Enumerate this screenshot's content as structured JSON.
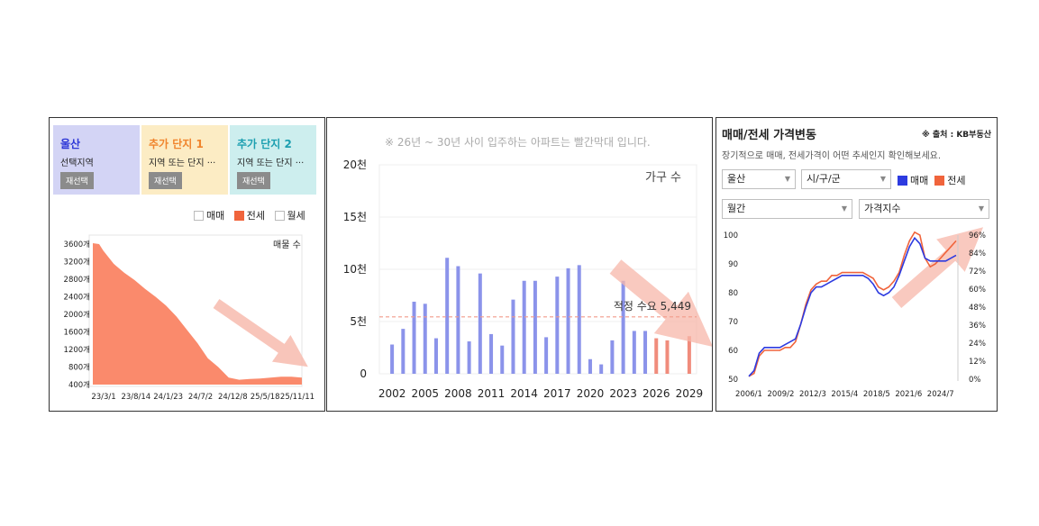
{
  "panel1": {
    "cells": [
      {
        "title": "울산",
        "subtitle": "선택지역",
        "button": "재선택",
        "bg": "#d3d4f5",
        "title_color": "#2b35d6"
      },
      {
        "title": "추가 단지 1",
        "subtitle": "지역 또는 단지 ···",
        "button": "재선택",
        "bg": "#fcecc4",
        "title_color": "#f0842c"
      },
      {
        "title": "추가 단지 2",
        "subtitle": "지역 또는 단지 ···",
        "button": "재선택",
        "bg": "#cdeeee",
        "title_color": "#1c9fb0"
      }
    ],
    "legend": [
      "매매",
      "전세",
      "월세"
    ],
    "legend_colors": [
      "#ffffff",
      "#f0643c",
      "#ffffff"
    ]
  },
  "panel2": {
    "note": "※ 26년 ~ 30년 사이 입주하는 아파트는 빨간막대 입니다.",
    "annotation": "적정 수요 5,449"
  },
  "panel3": {
    "title": "매매/전세 가격변동",
    "source": "※ 출처 : KB부동산",
    "description": "장기적으로 매매, 전세가격이 어떤 추세인지 확인해보세요.",
    "region_select": "울산",
    "district_select": "시/구/군",
    "period_select": "월간",
    "index_select": "가격지수",
    "legend": [
      "매매",
      "전세"
    ],
    "legend_colors": [
      "#2d3be0",
      "#f0643c"
    ]
  },
  "chart_data": [
    {
      "type": "area",
      "series": [
        {
          "name": "전세",
          "color": "#fa8a6c"
        }
      ],
      "annotation": "매물 수",
      "x_ticks": [
        "23/3/1",
        "23/8/14",
        "24/1/23",
        "24/7/2",
        "24/12/8",
        "25/5/18",
        "25/11/11"
      ],
      "y_ticks": [
        "3600개",
        "3200개",
        "2800개",
        "2400개",
        "2000개",
        "1600개",
        "1200개",
        "800개",
        "400개"
      ],
      "ylim": [
        400,
        3600
      ],
      "x": [
        0.0,
        0.03,
        0.05,
        0.1,
        0.15,
        0.2,
        0.25,
        0.3,
        0.35,
        0.4,
        0.45,
        0.5,
        0.55,
        0.6,
        0.65,
        0.7,
        0.75,
        0.8,
        0.85,
        0.9,
        0.95,
        1.0
      ],
      "values": [
        3620,
        3600,
        3450,
        3150,
        2950,
        2780,
        2580,
        2400,
        2200,
        1950,
        1650,
        1350,
        1000,
        800,
        560,
        510,
        530,
        540,
        560,
        580,
        580,
        560
      ]
    },
    {
      "type": "bar",
      "annotation": "가구 수",
      "categories": [
        "2002",
        "2003",
        "2004",
        "2005",
        "2006",
        "2007",
        "2008",
        "2009",
        "2010",
        "2011",
        "2012",
        "2013",
        "2014",
        "2015",
        "2016",
        "2017",
        "2018",
        "2019",
        "2020",
        "2021",
        "2022",
        "2023",
        "2024",
        "2025",
        "2026",
        "2027",
        "2028",
        "2029"
      ],
      "values": [
        2800,
        4300,
        6900,
        6700,
        3400,
        11100,
        10300,
        3100,
        9600,
        3800,
        2700,
        7100,
        8900,
        8900,
        3500,
        9300,
        10100,
        10400,
        1400,
        900,
        3200,
        8900,
        4100,
        4100,
        3400,
        3200,
        0,
        3600
      ],
      "future_from": "2026",
      "bar_color": "#8b93ea",
      "future_color": "#f08c7c",
      "y_ticks": [
        "20천",
        "15천",
        "10천",
        "5천",
        "0"
      ],
      "ylim": [
        0,
        20000
      ],
      "x_ticks": [
        "2002",
        "2005",
        "2008",
        "2011",
        "2014",
        "2017",
        "2020",
        "2023",
        "2026",
        "2029"
      ],
      "reference_line": 5449
    },
    {
      "type": "line",
      "x_ticks": [
        "2006/1",
        "2009/2",
        "2012/3",
        "2015/4",
        "2018/5",
        "2021/6",
        "2024/7"
      ],
      "y_left_ticks": [
        "100",
        "90",
        "80",
        "70",
        "60",
        "50"
      ],
      "y_left_lim": [
        50,
        100
      ],
      "y_right_ticks": [
        "96%",
        "84%",
        "72%",
        "60%",
        "48%",
        "36%",
        "24%",
        "12%",
        "0%"
      ],
      "x": [
        2006.0,
        2006.5,
        2007.0,
        2007.5,
        2008.0,
        2008.5,
        2009.0,
        2009.5,
        2010.0,
        2010.5,
        2011.0,
        2011.5,
        2012.0,
        2012.5,
        2013.0,
        2013.5,
        2014.0,
        2014.5,
        2015.0,
        2015.5,
        2016.0,
        2016.5,
        2017.0,
        2017.5,
        2018.0,
        2018.5,
        2019.0,
        2019.5,
        2020.0,
        2020.5,
        2021.0,
        2021.5,
        2022.0,
        2022.5,
        2023.0,
        2023.5,
        2024.0,
        2024.5,
        2025.0,
        2025.5,
        2026.0
      ],
      "series": [
        {
          "name": "매매",
          "color": "#2d3be0",
          "values": [
            51,
            53,
            59,
            61,
            61,
            61,
            61,
            62,
            63,
            64,
            69,
            75,
            80,
            82,
            82,
            83,
            84,
            85,
            86,
            86,
            86,
            86,
            86,
            85,
            83,
            80,
            79,
            80,
            82,
            86,
            91,
            96,
            99,
            97,
            92,
            91,
            91,
            91,
            91,
            92,
            93
          ]
        },
        {
          "name": "전세",
          "color": "#f0643c",
          "values": [
            51,
            52,
            58,
            60,
            60,
            60,
            60,
            61,
            61,
            63,
            69,
            76,
            81,
            83,
            84,
            84,
            86,
            86,
            87,
            87,
            87,
            87,
            87,
            86,
            85,
            82,
            81,
            82,
            84,
            87,
            93,
            98,
            101,
            100,
            92,
            89,
            90,
            92,
            94,
            96,
            98
          ]
        }
      ]
    }
  ]
}
